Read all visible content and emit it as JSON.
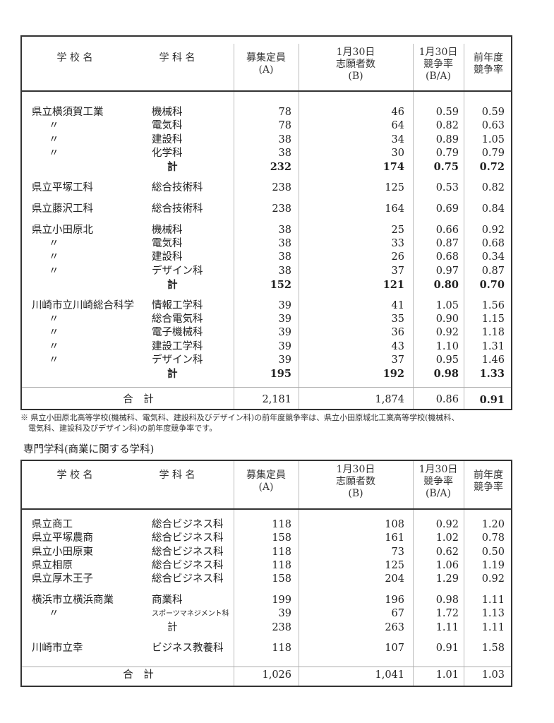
{
  "headers": {
    "school": "学 校 名",
    "dept": "学 科 名",
    "capacity": "募集定員\n(A)",
    "applicants": "1月30日\n志願者数\n(B)",
    "rate": "1月30日\n競争率\n(B/A)",
    "prev_rate": "前年度\n競争率"
  },
  "table1": {
    "rows": [
      {
        "school": "県立横須賀工業",
        "dept": "機械科",
        "a": "78",
        "b": "46",
        "r": "0.59",
        "p": "0.59",
        "group_start": true
      },
      {
        "school": "〃",
        "dept": "電気科",
        "a": "78",
        "b": "64",
        "r": "0.82",
        "p": "0.63"
      },
      {
        "school": "〃",
        "dept": "建設科",
        "a": "38",
        "b": "34",
        "r": "0.89",
        "p": "1.05"
      },
      {
        "school": "〃",
        "dept": "化学科",
        "a": "38",
        "b": "30",
        "r": "0.79",
        "p": "0.79"
      },
      {
        "school": "",
        "dept": "計",
        "a": "232",
        "b": "174",
        "r": "0.75",
        "p": "0.72"
      },
      {
        "school": "県立平塚工科",
        "dept": "総合技術科",
        "a": "238",
        "b": "125",
        "r": "0.53",
        "p": "0.82",
        "group_start": true
      },
      {
        "school": "県立藤沢工科",
        "dept": "総合技術科",
        "a": "238",
        "b": "164",
        "r": "0.69",
        "p": "0.84",
        "group_start": true
      },
      {
        "school": "県立小田原北",
        "dept": "機械科",
        "a": "38",
        "b": "25",
        "r": "0.66",
        "p": "0.92",
        "group_start": true
      },
      {
        "school": "〃",
        "dept": "電気科",
        "a": "38",
        "b": "33",
        "r": "0.87",
        "p": "0.68"
      },
      {
        "school": "〃",
        "dept": "建設科",
        "a": "38",
        "b": "26",
        "r": "0.68",
        "p": "0.34"
      },
      {
        "school": "〃",
        "dept": "デザイン科",
        "a": "38",
        "b": "37",
        "r": "0.97",
        "p": "0.87"
      },
      {
        "school": "",
        "dept": "計",
        "a": "152",
        "b": "121",
        "r": "0.80",
        "p": "0.70"
      },
      {
        "school": "川崎市立川崎総合科学",
        "dept": "情報工学科",
        "a": "39",
        "b": "41",
        "r": "1.05",
        "p": "1.56",
        "group_start": true
      },
      {
        "school": "〃",
        "dept": "総合電気科",
        "a": "39",
        "b": "35",
        "r": "0.90",
        "p": "1.15"
      },
      {
        "school": "〃",
        "dept": "電子機械科",
        "a": "39",
        "b": "36",
        "r": "0.92",
        "p": "1.18"
      },
      {
        "school": "〃",
        "dept": "建設工学科",
        "a": "39",
        "b": "43",
        "r": "1.10",
        "p": "1.31"
      },
      {
        "school": "〃",
        "dept": "デザイン科",
        "a": "39",
        "b": "37",
        "r": "0.95",
        "p": "1.46"
      },
      {
        "school": "",
        "dept": "計",
        "a": "195",
        "b": "192",
        "r": "0.98",
        "p": "1.33"
      }
    ],
    "total": {
      "label": "合　計",
      "a": "2,181",
      "b": "1,874",
      "r": "0.86",
      "p": "0.91"
    }
  },
  "note": "※ 県立小田原北高等学校(機械科、電気科、建設科及びデザイン科)の前年度競争率は、県立小田原城北工業高等学校(機械科、\n　電気科、建設科及びデザイン科)の前年度競争率です。",
  "section2_title": "専門学科(商業に関する学科)",
  "table2": {
    "rows": [
      {
        "school": "県立商工",
        "dept": "総合ビジネス科",
        "a": "118",
        "b": "108",
        "r": "0.92",
        "p": "1.20",
        "group_start": true
      },
      {
        "school": "県立平塚農商",
        "dept": "総合ビジネス科",
        "a": "158",
        "b": "161",
        "r": "1.02",
        "p": "0.78"
      },
      {
        "school": "県立小田原東",
        "dept": "総合ビジネス科",
        "a": "118",
        "b": "73",
        "r": "0.62",
        "p": "0.50"
      },
      {
        "school": "県立相原",
        "dept": "総合ビジネス科",
        "a": "118",
        "b": "125",
        "r": "1.06",
        "p": "1.19"
      },
      {
        "school": "県立厚木王子",
        "dept": "総合ビジネス科",
        "a": "158",
        "b": "204",
        "r": "1.29",
        "p": "0.92"
      },
      {
        "school": "横浜市立横浜商業",
        "dept": "商業科",
        "a": "199",
        "b": "196",
        "r": "0.98",
        "p": "1.11",
        "group_start": true
      },
      {
        "school": "〃",
        "dept": "スポーツマネジメント科",
        "a": "39",
        "b": "67",
        "r": "1.72",
        "p": "1.13",
        "small": true
      },
      {
        "school": "",
        "dept": "計",
        "a": "238",
        "b": "263",
        "r": "1.11",
        "p": "1.11"
      },
      {
        "school": "川崎市立幸",
        "dept": "ビジネス教養科",
        "a": "118",
        "b": "107",
        "r": "0.91",
        "p": "1.58",
        "group_start": true
      }
    ],
    "total": {
      "label": "合　計",
      "a": "1,026",
      "b": "1,041",
      "r": "1.01",
      "p": "1.03"
    }
  }
}
